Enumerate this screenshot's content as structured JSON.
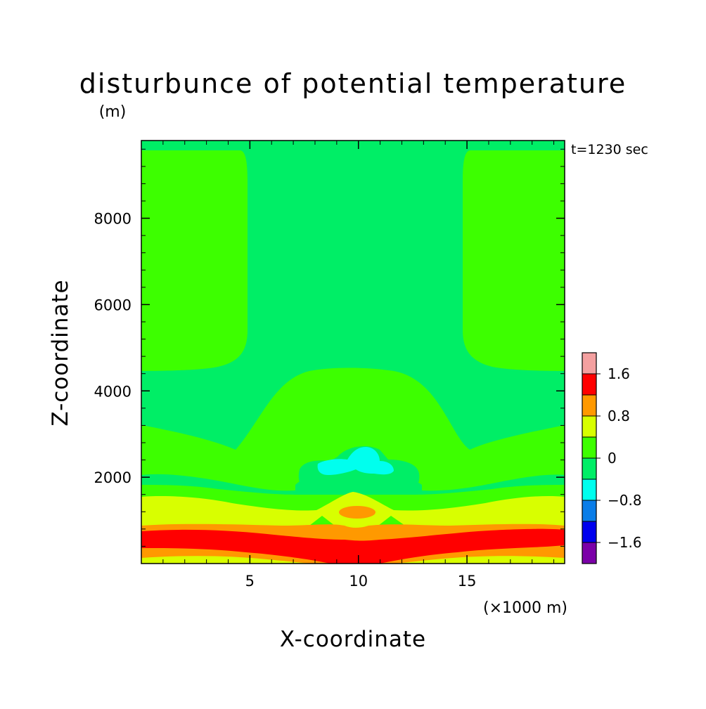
{
  "chart_data": {
    "type": "heatmap",
    "title": "disturbunce of potential temperature",
    "y_unit": "(m)",
    "x_unit": "(×1000 m)",
    "xlabel": "X-coordinate",
    "ylabel": "Z-coordinate",
    "time_label": "t=1230 sec",
    "xlim": [
      0,
      19.5
    ],
    "ylim": [
      0,
      9800
    ],
    "x_ticks": [
      5,
      10,
      15
    ],
    "y_ticks": [
      2000,
      4000,
      6000,
      8000
    ],
    "grid": false,
    "legend": "right",
    "colorbar": {
      "labels": [
        "1.6",
        "0.8",
        "0",
        "-0.8",
        "-1.6"
      ],
      "levels": [
        -2.0,
        -1.6,
        -1.2,
        -0.8,
        -0.4,
        0.0,
        0.4,
        0.8,
        1.2,
        1.6,
        2.0
      ],
      "colors": [
        "#7b00a8",
        "#0000ee",
        "#0a7de8",
        "#00ffee",
        "#00ee66",
        "#3dff00",
        "#d8ff00",
        "#ff9900",
        "#ff0000",
        "#f4a0a0"
      ]
    },
    "contour_regions": [
      {
        "level": "0 to 0.4",
        "color": "#3dff00",
        "x_range": [
          0,
          19.5
        ],
        "z_range": [
          0,
          9800
        ],
        "note": "background band"
      },
      {
        "level": "0 to -0.4",
        "color": "#00ee66",
        "x_range": [
          5.0,
          14.5
        ],
        "z_range": [
          4600,
          9800
        ],
        "note": "upper central column"
      },
      {
        "level": "0 to -0.4",
        "color": "#00ee66",
        "x_range": [
          0,
          19.5
        ],
        "z_range": [
          9600,
          9800
        ],
        "note": "top strip"
      },
      {
        "level": "-0.4 to -0.8",
        "color": "#00ffee",
        "x_range": [
          7.8,
          12.2
        ],
        "z_range": [
          2000,
          2800
        ],
        "note": "negative anomaly"
      },
      {
        "level": "0.4 to 0.8",
        "color": "#d8ff00",
        "x_range": [
          0,
          19.5
        ],
        "z_range": [
          900,
          1600
        ]
      },
      {
        "level": "0.8 to 1.2",
        "color": "#ff9900",
        "x_range": [
          0,
          19.5
        ],
        "z_range": [
          0,
          1000
        ]
      },
      {
        "level": "1.2 to 1.6",
        "color": "#ff0000",
        "x_range": [
          0,
          19.5
        ],
        "z_range": [
          150,
          900
        ],
        "note": "warm low-level layer"
      },
      {
        "level": "0.8 to 1.2",
        "color": "#ff9900",
        "x_range": [
          9.2,
          11.0
        ],
        "z_range": [
          1150,
          1400
        ]
      }
    ]
  }
}
